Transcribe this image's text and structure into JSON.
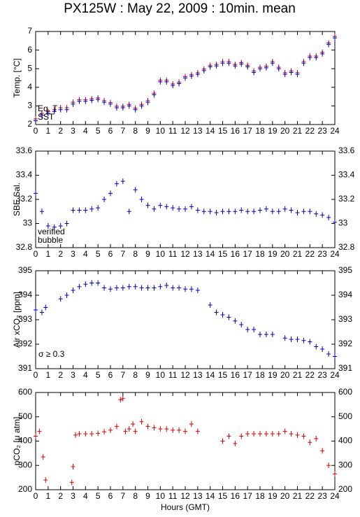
{
  "chart_data": [
    {
      "type": "scatter",
      "title": "PX125W : May 22, 2009 : 10min. mean",
      "ylabel": "Temp. [°C]",
      "xlim": [
        0,
        24
      ],
      "xticks": [
        0,
        1,
        2,
        3,
        4,
        5,
        6,
        7,
        8,
        9,
        10,
        11,
        12,
        13,
        14,
        15,
        16,
        17,
        18,
        19,
        20,
        21,
        22,
        23,
        24
      ],
      "ylim": [
        2,
        7
      ],
      "yticks": [
        2,
        3,
        4,
        5,
        6,
        7
      ],
      "right_ticks": false,
      "series": [
        {
          "name": "Eq. T",
          "color": "#dd0000",
          "x": [
            0,
            0.5,
            1,
            1.5,
            2,
            2.5,
            3,
            3.5,
            4,
            4.5,
            5,
            5.5,
            6,
            6.5,
            7,
            7.5,
            8,
            8.5,
            9,
            9.5,
            10,
            10.5,
            11,
            11.5,
            12,
            12.5,
            13,
            13.5,
            14,
            14.5,
            15,
            15.5,
            16,
            16.5,
            17,
            17.5,
            18,
            18.5,
            19,
            19.5,
            20,
            20.5,
            21,
            21.5,
            22,
            22.5,
            23,
            23.5,
            24
          ],
          "values": [
            2.3,
            2.6,
            2.7,
            2.8,
            2.9,
            2.9,
            3.2,
            3.33,
            3.33,
            3.38,
            3.43,
            3.28,
            3.18,
            2.98,
            2.98,
            3.08,
            2.88,
            3.08,
            3.28,
            3.68,
            4.38,
            4.38,
            4.18,
            4.28,
            4.58,
            4.68,
            4.78,
            4.98,
            5.18,
            5.23,
            5.38,
            5.38,
            5.23,
            5.33,
            5.18,
            4.88,
            5.08,
            5.13,
            5.38,
            5.08,
            4.78,
            4.88,
            4.78,
            5.38,
            5.68,
            5.68,
            5.88,
            6.38,
            6.73
          ]
        },
        {
          "name": "SST",
          "color": "#0000cc",
          "x": [
            0,
            0.5,
            1,
            1.5,
            2,
            2.5,
            3,
            3.5,
            4,
            4.5,
            5,
            5.5,
            6,
            6.5,
            7,
            7.5,
            8,
            8.5,
            9,
            9.5,
            10,
            10.5,
            11,
            11.5,
            12,
            12.5,
            13,
            13.5,
            14,
            14.5,
            15,
            15.5,
            16,
            16.5,
            17,
            17.5,
            18,
            18.5,
            19,
            19.5,
            20,
            20.5,
            21,
            21.5,
            22,
            22.5,
            23,
            23.5,
            24
          ],
          "values": [
            2.2,
            2.5,
            2.6,
            2.7,
            2.8,
            2.8,
            3.1,
            3.25,
            3.25,
            3.3,
            3.35,
            3.2,
            3.1,
            2.9,
            2.9,
            3.0,
            2.8,
            3.0,
            3.2,
            3.6,
            4.3,
            4.3,
            4.1,
            4.2,
            4.5,
            4.6,
            4.7,
            4.9,
            5.1,
            5.15,
            5.3,
            5.3,
            5.15,
            5.25,
            5.1,
            4.8,
            5.0,
            5.05,
            5.3,
            5.0,
            4.7,
            4.8,
            4.7,
            5.3,
            5.6,
            5.6,
            5.8,
            6.3,
            6.65
          ]
        }
      ]
    },
    {
      "type": "scatter",
      "ylabel": "SBE Sal.",
      "xlim": [
        0,
        24
      ],
      "xticks": [
        0,
        1,
        2,
        3,
        4,
        5,
        6,
        7,
        8,
        9,
        10,
        11,
        12,
        13,
        14,
        15,
        16,
        17,
        18,
        19,
        20,
        21,
        22,
        23,
        24
      ],
      "ylim": [
        32.8,
        33.6
      ],
      "yticks": [
        32.8,
        33,
        33.2,
        33.4,
        33.6
      ],
      "right_ticks": true,
      "series": [
        {
          "name": "verified",
          "color": "#0000cc",
          "x": [
            0,
            0.5,
            1,
            1.5,
            2,
            2.5,
            3,
            3.5,
            4,
            4.5,
            5,
            5.5,
            6,
            6.5,
            7,
            7.5,
            8,
            8.5,
            9,
            9.5,
            10,
            10.5,
            11,
            11.5,
            12,
            12.5,
            13,
            13.5,
            14,
            14.5,
            15,
            15.5,
            16,
            16.5,
            17,
            17.5,
            18,
            18.5,
            19,
            19.5,
            20,
            20.5,
            21,
            21.5,
            22,
            22.5,
            23,
            23.5,
            24
          ],
          "values": [
            33.25,
            33.1,
            32.98,
            32.97,
            32.98,
            33.0,
            33.11,
            33.11,
            33.11,
            33.12,
            33.13,
            33.2,
            33.25,
            33.33,
            33.35,
            33.1,
            33.28,
            33.2,
            33.15,
            33.12,
            33.15,
            33.14,
            33.13,
            33.12,
            33.12,
            33.14,
            33.11,
            33.1,
            33.1,
            33.09,
            33.1,
            33.1,
            33.1,
            33.11,
            33.1,
            33.1,
            33.11,
            33.12,
            33.1,
            33.1,
            33.12,
            33.11,
            33.09,
            33.1,
            33.1,
            33.08,
            33.07,
            33.05,
            33.01
          ]
        },
        {
          "name": "bubble",
          "color": "#cc00cc",
          "x": [],
          "values": []
        }
      ]
    },
    {
      "type": "scatter",
      "ylabel": "Air xCO₂ [ppm]",
      "annotation": "σ ≥ 0.3",
      "annotation_color": "#cc00cc",
      "xlim": [
        0,
        24
      ],
      "xticks": [
        0,
        1,
        2,
        3,
        4,
        5,
        6,
        7,
        8,
        9,
        10,
        11,
        12,
        13,
        14,
        15,
        16,
        17,
        18,
        19,
        20,
        21,
        22,
        23,
        24
      ],
      "ylim": [
        391,
        395
      ],
      "yticks": [
        391,
        392,
        393,
        394,
        395
      ],
      "right_ticks": true,
      "series": [
        {
          "color": "#0000cc",
          "x": [
            0,
            0.5,
            0.8,
            2,
            2.5,
            3,
            3.5,
            4,
            4.5,
            5,
            5.5,
            6,
            6.5,
            7,
            7.5,
            8,
            8.5,
            9,
            9.5,
            10,
            10.5,
            11,
            11.5,
            12,
            12.5,
            13,
            14,
            14.5,
            15,
            15.5,
            16,
            16.5,
            17,
            17.5,
            18,
            18.5,
            19,
            20,
            20.5,
            21,
            21.5,
            22,
            22.5,
            23,
            23.5,
            24
          ],
          "values": [
            393.4,
            393.3,
            393.5,
            393.85,
            394.0,
            394.2,
            394.35,
            394.45,
            394.5,
            394.5,
            394.3,
            394.25,
            394.3,
            394.3,
            394.35,
            394.35,
            394.3,
            394.3,
            394.3,
            394.35,
            394.4,
            394.3,
            394.3,
            394.25,
            394.25,
            394.2,
            393.6,
            393.3,
            393.2,
            393.1,
            392.95,
            392.8,
            392.6,
            392.6,
            392.4,
            392.4,
            392.4,
            392.25,
            392.2,
            392.2,
            392.15,
            392.1,
            391.9,
            391.8,
            391.6,
            391.5
          ]
        }
      ]
    },
    {
      "type": "scatter",
      "ylabel": "pCO₂ [μ atm]",
      "xlabel": "Hours (GMT)",
      "xlim": [
        0,
        24
      ],
      "xticks": [
        0,
        1,
        2,
        3,
        4,
        5,
        6,
        7,
        8,
        9,
        10,
        11,
        12,
        13,
        14,
        15,
        16,
        17,
        18,
        19,
        20,
        21,
        22,
        23,
        24
      ],
      "ylim": [
        200,
        600
      ],
      "yticks": [
        200,
        300,
        400,
        500,
        600
      ],
      "right_ticks": true,
      "series": [
        {
          "color": "#dd0000",
          "x": [
            0,
            0.3,
            0.6,
            0.8,
            2.9,
            3.0,
            3.2,
            3.5,
            4,
            4.5,
            5,
            5.5,
            6,
            6.5,
            6.8,
            7,
            7.2,
            7.5,
            7.8,
            8,
            8.5,
            9,
            9.5,
            10,
            10.5,
            11,
            11.5,
            12,
            12.5,
            13,
            15,
            15.5,
            16,
            16.5,
            17,
            17.5,
            18,
            18.5,
            19,
            19.5,
            20,
            20.5,
            21,
            21.5,
            22,
            22.5,
            23,
            23.5,
            24
          ],
          "values": [
            420,
            440,
            335,
            240,
            230,
            295,
            425,
            430,
            430,
            430,
            432,
            438,
            445,
            460,
            570,
            575,
            440,
            450,
            470,
            440,
            480,
            460,
            455,
            450,
            450,
            445,
            445,
            440,
            470,
            440,
            400,
            420,
            390,
            420,
            430,
            430,
            430,
            430,
            430,
            430,
            440,
            430,
            425,
            420,
            395,
            410,
            360,
            300,
            265
          ]
        }
      ]
    }
  ]
}
